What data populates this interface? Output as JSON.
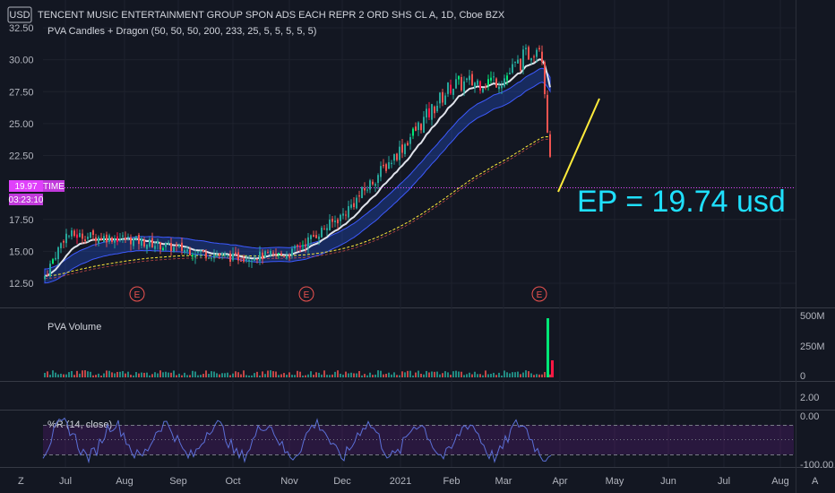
{
  "header": {
    "currency": "USD",
    "title": "TENCENT MUSIC ENTERTAINMENT GROUP SPON ADS EACH REPR 2 ORD SHS CL A, 1D, Cboe BZX",
    "indicator": "PVA Candles + Dragon (50, 50, 50, 200, 233, 25, 5, 5, 5, 5, 5)"
  },
  "annotation": {
    "text": "EP = 19.74 usd",
    "color": "#1fe0ff",
    "trend_line_color": "#ffeb3b"
  },
  "price_tag": {
    "price": "19.97",
    "label": "TIME",
    "countdown": "03:23:10",
    "color": "#e040fb"
  },
  "earnings_marker": "E",
  "panes": {
    "volume": {
      "label": "PVA Volume",
      "ticks": [
        "500M",
        "250M",
        "0"
      ]
    },
    "middle": {
      "ticks": [
        "2.00"
      ]
    },
    "wr": {
      "label": "%R (14, close)",
      "ticks": [
        "0.00",
        "-100.00"
      ]
    }
  },
  "footer": {
    "left_icon": "Z",
    "right_icon": "A"
  },
  "colors": {
    "up": "#26a69a",
    "down": "#ef5350",
    "pva_green": "#00e676",
    "pva_red": "#ff1744",
    "ema_fast": "#e0e3eb",
    "dragon": "#2962ff",
    "ema_slow": "#ffeb3b",
    "wr": "#5b6fd6"
  },
  "chart_data": {
    "type": "candlestick",
    "price_axis": {
      "ticks": [
        32.5,
        30.0,
        27.5,
        25.0,
        22.5,
        20.0,
        17.5,
        15.0,
        12.5
      ],
      "tick_labels": [
        "32.50",
        "30.00",
        "27.50",
        "25.00",
        "22.50",
        "20.00",
        "17.50",
        "15.00",
        "12.50"
      ]
    },
    "time_axis": {
      "labels": [
        "Jul",
        "Aug",
        "Sep",
        "Oct",
        "Nov",
        "Dec",
        "2021",
        "Feb",
        "Mar",
        "Apr",
        "May",
        "Jun",
        "Jul",
        "Aug"
      ]
    },
    "earnings_events": [
      "Aug",
      "Nov",
      "Mar"
    ],
    "last_price": 19.97,
    "x": [
      "Jun",
      "Jul",
      "Aug",
      "Sep",
      "Oct",
      "Nov",
      "Dec",
      "Jan",
      "Feb",
      "Mar",
      "Apr"
    ],
    "close_approx": [
      12.8,
      16.3,
      16.0,
      15.2,
      14.5,
      14.8,
      17.8,
      23.0,
      28.0,
      29.5,
      19.97
    ],
    "wr_range": [
      -100,
      0
    ]
  }
}
